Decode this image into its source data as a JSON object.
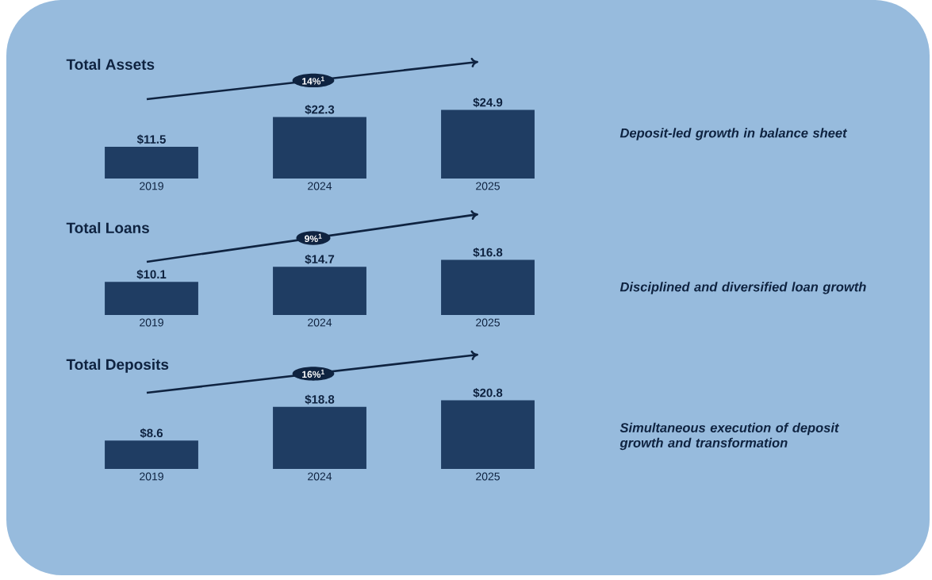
{
  "chart_data": [
    {
      "type": "bar",
      "title": "Total Assets",
      "categories": [
        "2019",
        "2024",
        "2025"
      ],
      "values": [
        11.5,
        22.3,
        24.9
      ],
      "value_labels": [
        "$11.5",
        "$22.3",
        "$24.9"
      ],
      "color": "#1f3d63",
      "annotations": [
        "14%$^{1}$",
        "Deposit-led growth in balance sheet"
      ]
    },
    {
      "type": "bar",
      "title": "Total Loans",
      "categories": [
        "2019",
        "2024",
        "2025"
      ],
      "values": [
        10.1,
        14.7,
        16.8
      ],
      "value_labels": [
        "$10.1",
        "$14.7",
        "$16.8"
      ],
      "color": "#1f3d63",
      "annotations": [
        "9%$^{1}$",
        "Disciplined and diversified loan growth"
      ]
    },
    {
      "type": "bar",
      "title": "Total Deposits",
      "categories": [
        "2019",
        "2024",
        "2025"
      ],
      "values": [
        8.6,
        18.8,
        20.8
      ],
      "value_labels": [
        "$8.6",
        "$18.8",
        "$20.8"
      ],
      "color": "#1f3d63",
      "annotations": [
        "16%$^{1}$",
        "Simultaneous execution of deposit growth and transformation"
      ]
    }
  ]
}
